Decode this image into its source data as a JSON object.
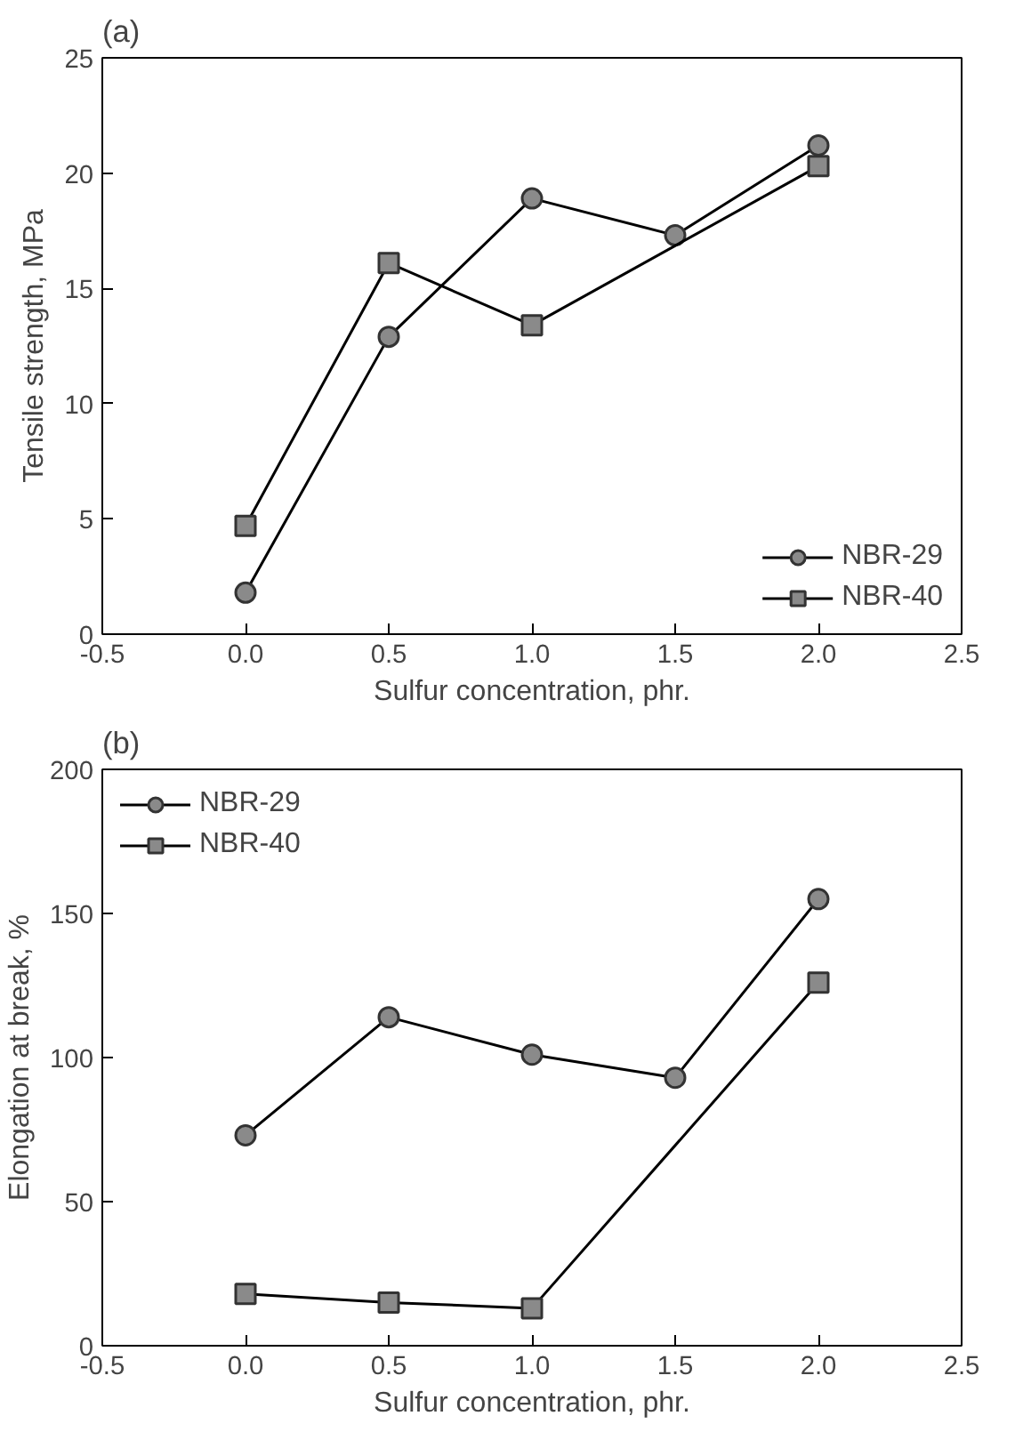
{
  "chart_data": [
    {
      "type": "line",
      "title": "(a)",
      "xlabel": "Sulfur concentration, phr.",
      "ylabel": "Tensile strength, MPa",
      "xlim": [
        -0.5,
        2.5
      ],
      "ylim": [
        0,
        25
      ],
      "xticks": [
        -0.5,
        {
          "value": 0,
          "label": "0.0"
        },
        0.5,
        {
          "value": 1,
          "label": "1.0"
        },
        1.5,
        {
          "value": 2,
          "label": "2.0"
        },
        2.5
      ],
      "yticks": [
        0,
        5,
        10,
        15,
        20,
        25
      ],
      "grid": false,
      "legend": "bottom right",
      "line_style": "solid",
      "series": [
        {
          "name": "NBR-29",
          "color": "#000000",
          "marker": "circle",
          "x": [
            0,
            0.5,
            1,
            1.5,
            2
          ],
          "values": [
            1.8,
            12.9,
            18.9,
            17.3,
            21.2
          ]
        },
        {
          "name": "NBR-40",
          "color": "#000000",
          "marker": "square",
          "x": [
            0,
            0.5,
            1,
            2
          ],
          "values": [
            4.7,
            16.1,
            13.4,
            20.3
          ]
        }
      ]
    },
    {
      "type": "line",
      "title": "(b)",
      "xlabel": "Sulfur concentration, phr.",
      "ylabel": "Elongation at break, %",
      "xlim": [
        -0.5,
        2.5
      ],
      "ylim": [
        0,
        200
      ],
      "xticks": [
        -0.5,
        {
          "value": 0,
          "label": "0.0"
        },
        0.5,
        {
          "value": 1,
          "label": "1.0"
        },
        1.5,
        {
          "value": 2,
          "label": "2.0"
        },
        2.5
      ],
      "yticks": [
        0,
        50,
        100,
        150,
        200
      ],
      "grid": false,
      "legend": "top left",
      "line_style": "solid",
      "series": [
        {
          "name": "NBR-29",
          "color": "#000000",
          "marker": "circle",
          "x": [
            0,
            0.5,
            1,
            1.5,
            2
          ],
          "values": [
            73,
            114,
            101,
            93,
            155
          ]
        },
        {
          "name": "NBR-40",
          "color": "#000000",
          "marker": "square",
          "x": [
            0,
            0.5,
            1,
            2
          ],
          "values": [
            18,
            15,
            13,
            126
          ]
        }
      ]
    }
  ]
}
